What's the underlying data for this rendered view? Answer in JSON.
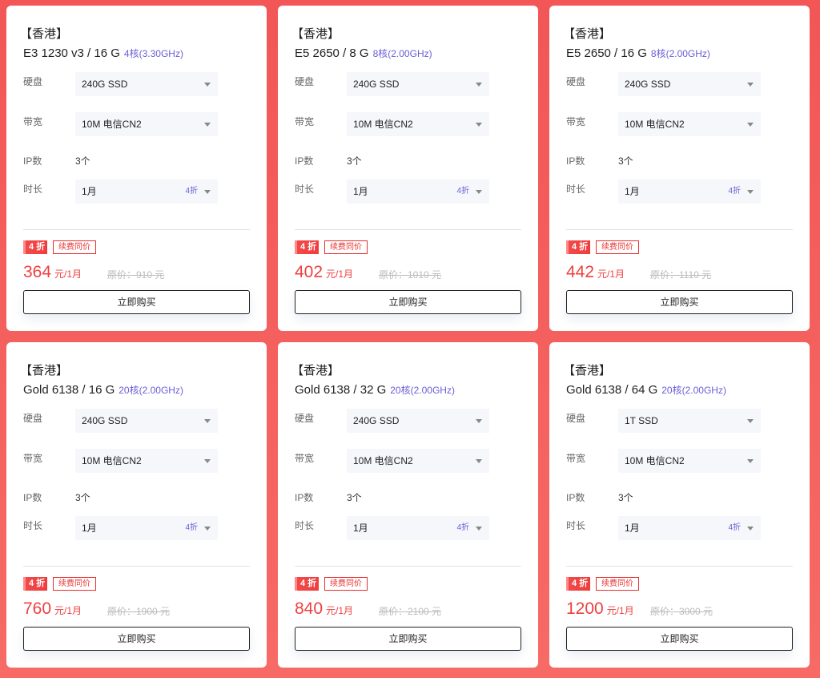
{
  "labels": {
    "disk": "硬盘",
    "bandwidth": "带宽",
    "ip": "IP数",
    "duration": "时长",
    "renew": "续费同价",
    "buy": "立即购买"
  },
  "cards": [
    {
      "region": "【香港】",
      "model": "E3 1230 v3 / 16 G",
      "cpu": "4核(3.30GHz)",
      "disk": "240G SSD",
      "bandwidth": "10M 电信CN2",
      "ip": "3个",
      "duration": "1月",
      "duration_discount": "4折",
      "discount_badge": "4 折",
      "price": "364",
      "price_unit": "元/1月",
      "original_price": "原价：910 元"
    },
    {
      "region": "【香港】",
      "model": "E5 2650 / 8 G",
      "cpu": "8核(2.00GHz)",
      "disk": "240G SSD",
      "bandwidth": "10M 电信CN2",
      "ip": "3个",
      "duration": "1月",
      "duration_discount": "4折",
      "discount_badge": "4 折",
      "price": "402",
      "price_unit": "元/1月",
      "original_price": "原价：1010 元"
    },
    {
      "region": "【香港】",
      "model": "E5 2650 / 16 G",
      "cpu": "8核(2.00GHz)",
      "disk": "240G SSD",
      "bandwidth": "10M 电信CN2",
      "ip": "3个",
      "duration": "1月",
      "duration_discount": "4折",
      "discount_badge": "4 折",
      "price": "442",
      "price_unit": "元/1月",
      "original_price": "原价：1110 元"
    },
    {
      "region": "【香港】",
      "model": "Gold 6138 / 16 G",
      "cpu": "20核(2.00GHz)",
      "disk": "240G SSD",
      "bandwidth": "10M 电信CN2",
      "ip": "3个",
      "duration": "1月",
      "duration_discount": "4折",
      "discount_badge": "4 折",
      "price": "760",
      "price_unit": "元/1月",
      "original_price": "原价：1900 元"
    },
    {
      "region": "【香港】",
      "model": "Gold 6138 / 32 G",
      "cpu": "20核(2.00GHz)",
      "disk": "240G SSD",
      "bandwidth": "10M 电信CN2",
      "ip": "3个",
      "duration": "1月",
      "duration_discount": "4折",
      "discount_badge": "4 折",
      "price": "840",
      "price_unit": "元/1月",
      "original_price": "原价：2100 元"
    },
    {
      "region": "【香港】",
      "model": "Gold 6138 / 64 G",
      "cpu": "20核(2.00GHz)",
      "disk": "1T SSD",
      "bandwidth": "10M 电信CN2",
      "ip": "3个",
      "duration": "1月",
      "duration_discount": "4折",
      "discount_badge": "4 折",
      "price": "1200",
      "price_unit": "元/1月",
      "original_price": "原价：3000 元"
    }
  ]
}
